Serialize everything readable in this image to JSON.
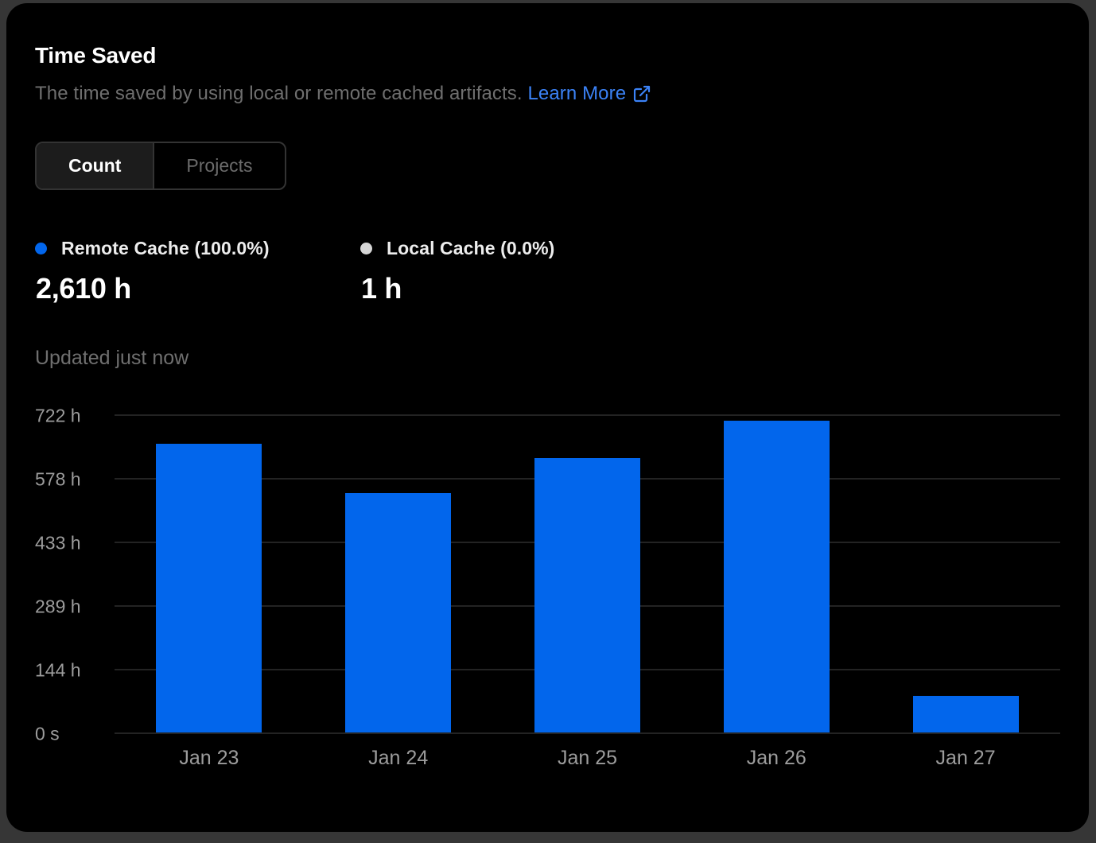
{
  "header": {
    "title": "Time Saved",
    "subtitle": "The time saved by using local or remote cached artifacts.",
    "learn_more_label": "Learn More"
  },
  "toggle": {
    "options": [
      {
        "label": "Count",
        "active": true
      },
      {
        "label": "Projects",
        "active": false
      }
    ]
  },
  "legend": {
    "items": [
      {
        "label": "Remote Cache (100.0%)",
        "value": "2,610 h",
        "color": "#0266EC"
      },
      {
        "label": "Local Cache (0.0%)",
        "value": "1 h",
        "color": "#D6D6D6"
      }
    ]
  },
  "status": {
    "updated_text": "Updated just now"
  },
  "colors": {
    "bar_blue": "#0266EC",
    "link_blue": "#3b82f6",
    "card_background": "#000000",
    "gridline": "#232323"
  },
  "chart_data": {
    "type": "bar",
    "title": "Time Saved",
    "categories": [
      "Jan 23",
      "Jan 24",
      "Jan 25",
      "Jan 26",
      "Jan 27"
    ],
    "series": [
      {
        "name": "Remote Cache",
        "values": [
          655,
          543,
          622,
          707,
          83
        ]
      }
    ],
    "unit": "h",
    "y_ticks": [
      "722 h",
      "578 h",
      "433 h",
      "289 h",
      "144 h",
      "0 s"
    ],
    "y_max": 722,
    "ylim": [
      0,
      722
    ],
    "bar_color": "#0266EC",
    "grid": true,
    "legend_position": "top"
  }
}
